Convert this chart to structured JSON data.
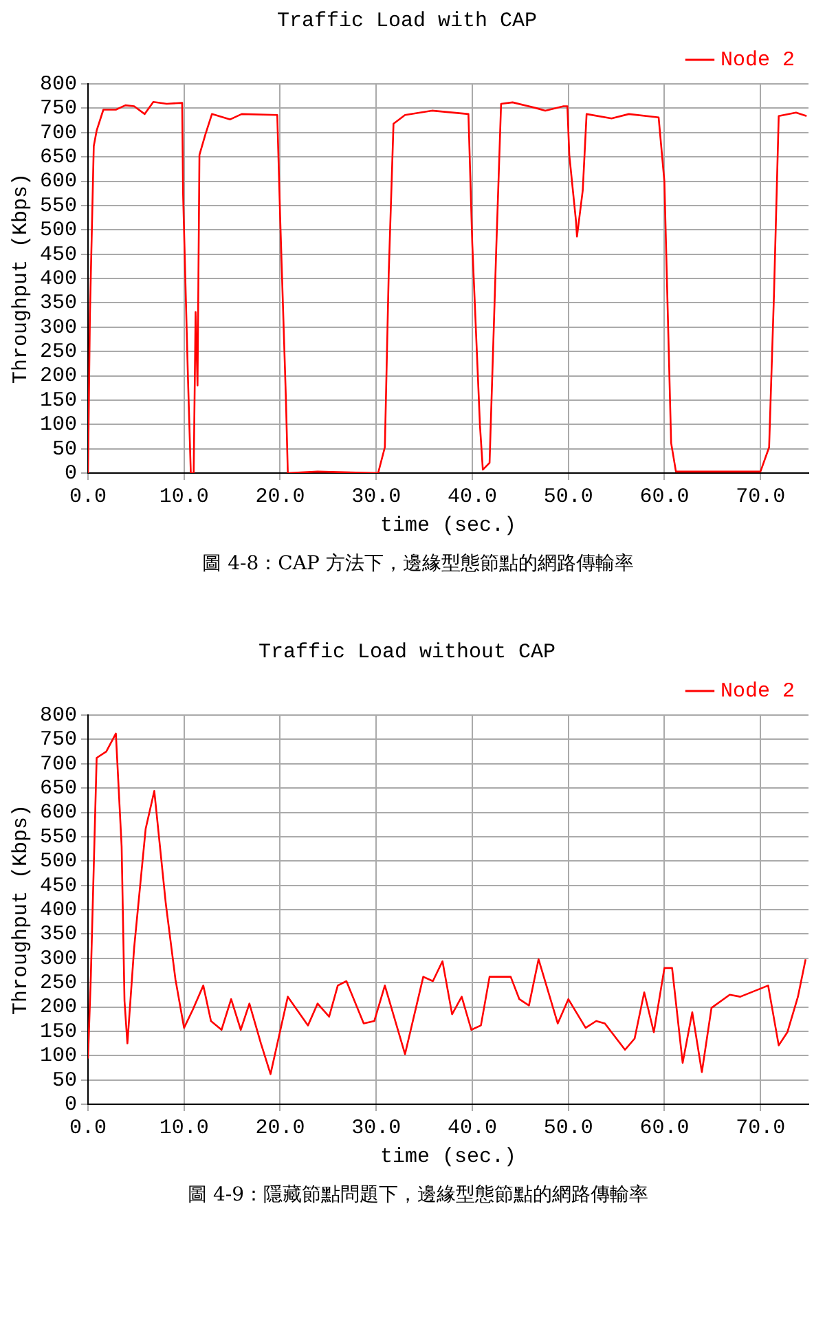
{
  "chart_data": [
    {
      "type": "line",
      "title": "Traffic Load with CAP",
      "xlabel": "time (sec.)",
      "ylabel": "Throughput (Kbps)",
      "legend": "top right",
      "grid": true,
      "marker": "none",
      "line_style": "solid",
      "xlim": [
        0,
        75
      ],
      "xticks": [
        {
          "value": 0,
          "label": "0.0"
        },
        {
          "value": 10,
          "label": "10.0"
        },
        {
          "value": 20,
          "label": "20.0"
        },
        {
          "value": 30,
          "label": "30.0"
        },
        {
          "value": 40,
          "label": "40.0"
        },
        {
          "value": 50,
          "label": "50.0"
        },
        {
          "value": 60,
          "label": "60.0"
        },
        {
          "value": 70,
          "label": "70.0"
        }
      ],
      "ylim": [
        0,
        800
      ],
      "yticks": [
        0,
        50,
        100,
        150,
        200,
        250,
        300,
        350,
        400,
        450,
        500,
        550,
        600,
        650,
        700,
        750,
        800
      ],
      "series": [
        {
          "name": "Node 2",
          "color": "#ff0000",
          "x": [
            0,
            0.2,
            0.4,
            0.6,
            0.9,
            1.6,
            2.9,
            3.9,
            4.8,
            5.9,
            6.8,
            8.2,
            9.8,
            9.9,
            10.4,
            10.7,
            11.0,
            11.2,
            11.4,
            11.6,
            12.2,
            12.9,
            14.8,
            16.0,
            19.7,
            20.0,
            20.6,
            20.8,
            23.9,
            30.2,
            30.9,
            31.3,
            31.8,
            33.0,
            35.8,
            39.6,
            40.0,
            40.8,
            41.1,
            41.8,
            42.5,
            43.0,
            44.2,
            46.7,
            47.6,
            49.5,
            49.9,
            50.1,
            50.8,
            50.9,
            51.5,
            51.9,
            54.5,
            56.3,
            59.4,
            60.0,
            60.7,
            61.2,
            63.8,
            70.0,
            70.9,
            71.4,
            71.9,
            73.7,
            74.8
          ],
          "values": [
            0,
            326,
            499,
            672,
            704,
            747,
            747,
            756,
            754,
            738,
            763,
            759,
            761,
            572,
            199,
            0,
            0,
            331,
            180,
            654,
            695,
            738,
            727,
            738,
            736,
            527,
            153,
            0,
            3,
            0,
            53,
            408,
            718,
            736,
            745,
            738,
            472,
            98,
            7,
            21,
            463,
            759,
            762,
            750,
            745,
            754,
            754,
            654,
            517,
            486,
            581,
            738,
            729,
            738,
            731,
            599,
            62,
            3,
            3,
            3,
            53,
            363,
            734,
            741,
            734
          ]
        }
      ],
      "annotations": [
        "圖 4-8：CAP 方法下，邊緣型態節點的網路傳輸率"
      ]
    },
    {
      "type": "line",
      "title": "Traffic Load without CAP",
      "xlabel": "time (sec.)",
      "ylabel": "Throughput (Kbps)",
      "legend": "top right",
      "grid": true,
      "marker": "none",
      "line_style": "solid",
      "xlim": [
        0,
        75
      ],
      "xticks": [
        {
          "value": 0,
          "label": "0.0"
        },
        {
          "value": 10,
          "label": "10.0"
        },
        {
          "value": 20,
          "label": "20.0"
        },
        {
          "value": 30,
          "label": "30.0"
        },
        {
          "value": 40,
          "label": "40.0"
        },
        {
          "value": 50,
          "label": "50.0"
        },
        {
          "value": 60,
          "label": "60.0"
        },
        {
          "value": 70,
          "label": "70.0"
        }
      ],
      "ylim": [
        0,
        800
      ],
      "yticks": [
        0,
        50,
        100,
        150,
        200,
        250,
        300,
        350,
        400,
        450,
        500,
        550,
        600,
        650,
        700,
        750,
        800
      ],
      "series": [
        {
          "name": "Node 2",
          "color": "#ff0000",
          "x": [
            0,
            0.3,
            0.9,
            1.9,
            2.9,
            3.5,
            3.8,
            4.1,
            4.8,
            6.0,
            6.9,
            8.1,
            9.1,
            10.0,
            10.9,
            12.0,
            12.8,
            13.9,
            14.9,
            15.9,
            16.8,
            18.0,
            19.0,
            20.8,
            22.9,
            23.9,
            25.1,
            26.0,
            26.9,
            28.7,
            29.8,
            30.9,
            33.0,
            34.9,
            35.9,
            36.9,
            37.9,
            38.9,
            39.9,
            40.9,
            41.8,
            44.0,
            44.9,
            45.9,
            46.9,
            48.9,
            50.0,
            51.8,
            52.9,
            53.8,
            55.9,
            56.9,
            57.9,
            58.9,
            60.0,
            60.8,
            61.9,
            62.9,
            63.9,
            64.9,
            66.8,
            67.9,
            70.8,
            71.9,
            72.8,
            73.9,
            74.7
          ],
          "values": [
            94,
            266,
            712,
            725,
            762,
            530,
            212,
            125,
            321,
            566,
            644,
            412,
            257,
            157,
            194,
            244,
            171,
            153,
            216,
            153,
            207,
            125,
            62,
            221,
            162,
            207,
            180,
            244,
            253,
            166,
            171,
            244,
            103,
            262,
            253,
            294,
            185,
            221,
            153,
            162,
            262,
            262,
            216,
            203,
            298,
            166,
            216,
            157,
            171,
            166,
            112,
            135,
            230,
            148,
            280,
            280,
            85,
            189,
            66,
            198,
            225,
            221,
            244,
            121,
            148,
            221,
            298
          ]
        }
      ],
      "annotations": [
        "圖 4-9：隱藏節點問題下，邊緣型態節點的網路傳輸率"
      ]
    }
  ]
}
